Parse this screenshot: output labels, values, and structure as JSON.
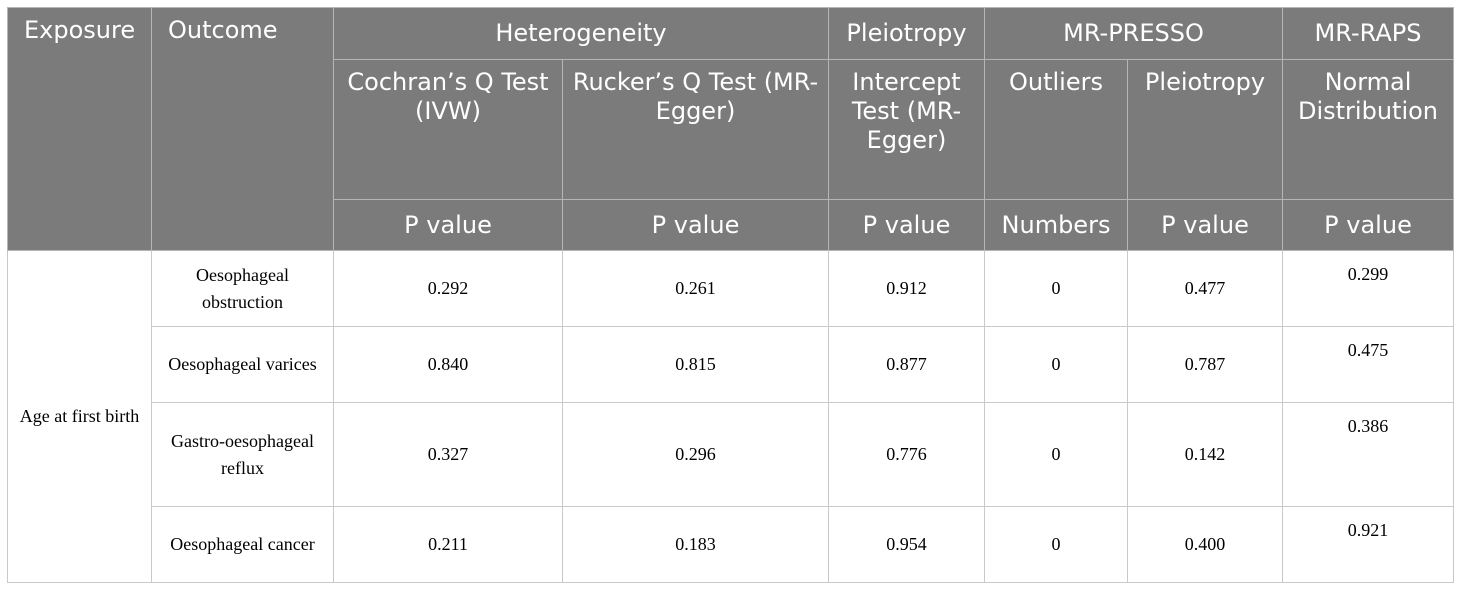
{
  "table": {
    "header": {
      "exposure": "Exposure",
      "outcome": "Outcome",
      "groups": {
        "heterogeneity": "Heterogeneity",
        "pleiotropy": "Pleiotropy",
        "mr_presso": "MR-PRESSO",
        "mr_raps": "MR-RAPS"
      },
      "methods": {
        "cochran": "Cochran’s Q Test (IVW)",
        "rucker": "Rucker’s Q Test (MR-Egger)",
        "intercept": "Intercept Test (MR-Egger)",
        "outliers": "Outliers",
        "presso_pleiotropy": "Pleiotropy",
        "normal_distribution": "Normal Distribution"
      },
      "units": {
        "cochran": "P value",
        "rucker": "P value",
        "intercept": "P value",
        "outliers": "Numbers",
        "presso_pleiotropy": "P value",
        "normal_distribution": "P value"
      }
    },
    "exposure": "Age at first birth",
    "rows": [
      {
        "outcome": "Oesophageal obstruction",
        "cochran": "0.292",
        "rucker": "0.261",
        "intercept": "0.912",
        "outliers": "0",
        "presso_pleiotropy": "0.477",
        "normal_distribution": "0.299"
      },
      {
        "outcome": "Oesophageal varices",
        "cochran": "0.840",
        "rucker": "0.815",
        "intercept": "0.877",
        "outliers": "0",
        "presso_pleiotropy": "0.787",
        "normal_distribution": "0.475"
      },
      {
        "outcome": "Gastro-oesophageal reflux",
        "cochran": "0.327",
        "rucker": "0.296",
        "intercept": "0.776",
        "outliers": "0",
        "presso_pleiotropy": "0.142",
        "normal_distribution": "0.386"
      },
      {
        "outcome": "Oesophageal cancer",
        "cochran": "0.211",
        "rucker": "0.183",
        "intercept": "0.954",
        "outliers": "0",
        "presso_pleiotropy": "0.400",
        "normal_distribution": "0.921"
      }
    ],
    "colors": {
      "header_background": "#7b7b7b",
      "header_text": "#ffffff",
      "body_text": "#000000",
      "border": "#c9c9c9"
    }
  }
}
